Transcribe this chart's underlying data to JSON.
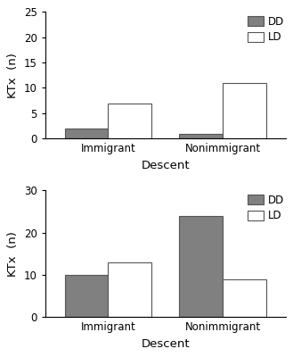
{
  "top_chart": {
    "categories": [
      "Immigrant",
      "Nonimmigrant"
    ],
    "DD_values": [
      2,
      1
    ],
    "LD_values": [
      7,
      11
    ],
    "ylim": [
      0,
      25
    ],
    "yticks": [
      0,
      5,
      10,
      15,
      20,
      25
    ],
    "ylabel": "KTx  (n)",
    "xlabel": "Descent",
    "bar_width": 0.38,
    "DD_color": "#808080",
    "LD_color": "#ffffff",
    "bar_edge_color": "#555555"
  },
  "bottom_chart": {
    "categories": [
      "Immigrant",
      "Nonimmigrant"
    ],
    "DD_values": [
      10,
      24
    ],
    "LD_values": [
      13,
      9
    ],
    "ylim": [
      0,
      30
    ],
    "yticks": [
      0,
      10,
      20,
      30
    ],
    "ylabel": "KTx  (n)",
    "xlabel": "Descent",
    "bar_width": 0.38,
    "DD_color": "#808080",
    "LD_color": "#ffffff",
    "bar_edge_color": "#555555"
  },
  "background_color": "#ffffff",
  "tick_fontsize": 8.5,
  "label_fontsize": 9.5,
  "legend_fontsize": 8.5
}
